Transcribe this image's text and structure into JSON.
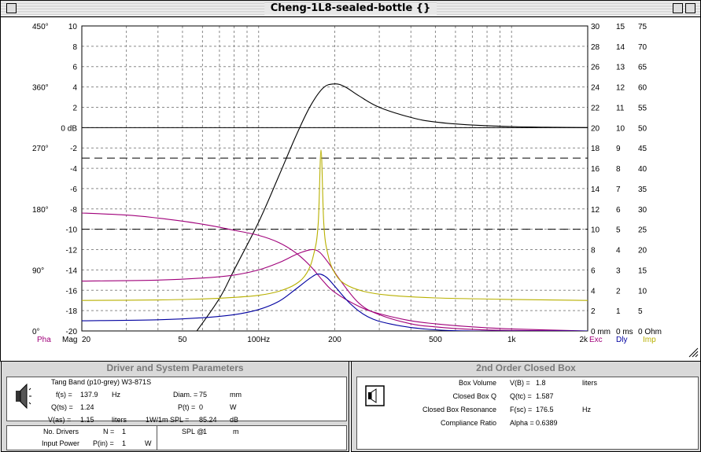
{
  "window": {
    "title": "Cheng-1L8-sealed-bottle {}"
  },
  "chart_data": {
    "type": "line",
    "x_scale": "log",
    "x_range_hz": [
      20,
      2000
    ],
    "x_ticks": [
      {
        "hz": 20,
        "label": "20"
      },
      {
        "hz": 50,
        "label": "50"
      },
      {
        "hz": 100,
        "label": "100Hz"
      },
      {
        "hz": 200,
        "label": "200"
      },
      {
        "hz": 500,
        "label": "500"
      },
      {
        "hz": 1000,
        "label": "1k"
      },
      {
        "hz": 2000,
        "label": "2k"
      }
    ],
    "grid": true,
    "left_phase_ticks": [
      {
        "v": 450,
        "label": "450°"
      },
      {
        "v": 360,
        "label": "360°"
      },
      {
        "v": 270,
        "label": "270°"
      },
      {
        "v": 180,
        "label": "180°"
      },
      {
        "v": 90,
        "label": "90°"
      },
      {
        "v": 0,
        "label": "0°"
      }
    ],
    "mag_range_db": [
      -20,
      10
    ],
    "mag_ticks": [
      "10",
      "8",
      "6",
      "4",
      "2",
      "0 dB",
      "-2",
      "-4",
      "-6",
      "-8",
      "-10",
      "-12",
      "-14",
      "-16",
      "-18",
      "-20"
    ],
    "exc_ticks": [
      "30",
      "28",
      "26",
      "24",
      "22",
      "20",
      "18",
      "16",
      "14",
      "12",
      "10",
      "8",
      "6",
      "4",
      "2",
      "0 mm"
    ],
    "dly_ticks": [
      "15",
      "14",
      "13",
      "12",
      "11",
      "10",
      "9",
      "8",
      "7",
      "6",
      "5",
      "4",
      "3",
      "2",
      "1",
      "0 ms"
    ],
    "imp_ticks": [
      "75",
      "70",
      "65",
      "60",
      "55",
      "50",
      "45",
      "40",
      "35",
      "30",
      "25",
      "20",
      "15",
      "10",
      "5",
      "0 Ohm"
    ],
    "axis_labels": {
      "pha": "Pha",
      "mag": "Mag",
      "exc": "Exc",
      "dly": "Dly",
      "imp": "Imp"
    },
    "dashed_reference_db": [
      -3,
      -10
    ],
    "series": [
      {
        "key": "magnitude",
        "color": "#000000",
        "points": [
          [
            57,
            -20
          ],
          [
            70,
            -16.8
          ],
          [
            80,
            -14
          ],
          [
            100,
            -9.3
          ],
          [
            120,
            -4.8
          ],
          [
            140,
            -0.9
          ],
          [
            160,
            2.1
          ],
          [
            180,
            3.9
          ],
          [
            200,
            4.3
          ],
          [
            220,
            4.0
          ],
          [
            250,
            3.1
          ],
          [
            300,
            2.0
          ],
          [
            400,
            1.0
          ],
          [
            500,
            0.55
          ],
          [
            700,
            0.25
          ],
          [
            1000,
            0.1
          ],
          [
            1500,
            0.03
          ],
          [
            2000,
            0
          ]
        ]
      },
      {
        "key": "phase",
        "color": "#a0007a",
        "points": [
          [
            20,
            -8.4
          ],
          [
            30,
            -8.6
          ],
          [
            40,
            -8.9
          ],
          [
            50,
            -9.2
          ],
          [
            60,
            -9.5
          ],
          [
            70,
            -9.8
          ],
          [
            80,
            -10.1
          ],
          [
            100,
            -10.6
          ],
          [
            120,
            -11.3
          ],
          [
            140,
            -12.3
          ],
          [
            160,
            -13.6
          ],
          [
            180,
            -15.1
          ],
          [
            200,
            -16.2
          ],
          [
            250,
            -17.6
          ],
          [
            300,
            -18.3
          ],
          [
            400,
            -19
          ],
          [
            500,
            -19.3
          ],
          [
            700,
            -19.6
          ],
          [
            1000,
            -19.8
          ],
          [
            2000,
            -20
          ]
        ]
      },
      {
        "key": "excursion",
        "color": "#a0007a",
        "points": [
          [
            20,
            -15.1
          ],
          [
            40,
            -15.0
          ],
          [
            60,
            -14.8
          ],
          [
            80,
            -14.5
          ],
          [
            100,
            -14.0
          ],
          [
            120,
            -13.3
          ],
          [
            140,
            -12.5
          ],
          [
            155,
            -12.1
          ],
          [
            165,
            -12.0
          ],
          [
            175,
            -12.3
          ],
          [
            190,
            -13.4
          ],
          [
            210,
            -15.0
          ],
          [
            250,
            -17.3
          ],
          [
            300,
            -18.4
          ],
          [
            400,
            -19.3
          ],
          [
            500,
            -19.6
          ],
          [
            700,
            -19.85
          ],
          [
            1000,
            -19.95
          ],
          [
            2000,
            -20
          ]
        ]
      },
      {
        "key": "delay",
        "color": "#0000a0",
        "points": [
          [
            20,
            -19.0
          ],
          [
            40,
            -18.9
          ],
          [
            60,
            -18.7
          ],
          [
            80,
            -18.4
          ],
          [
            100,
            -17.9
          ],
          [
            120,
            -17.1
          ],
          [
            140,
            -15.9
          ],
          [
            160,
            -14.8
          ],
          [
            172,
            -14.4
          ],
          [
            185,
            -14.7
          ],
          [
            200,
            -15.6
          ],
          [
            230,
            -17.3
          ],
          [
            270,
            -18.6
          ],
          [
            330,
            -19.3
          ],
          [
            450,
            -19.8
          ],
          [
            700,
            -20
          ],
          [
            2000,
            -20
          ]
        ]
      },
      {
        "key": "impedance",
        "color": "#b8b000",
        "points": [
          [
            20,
            -17.0
          ],
          [
            40,
            -16.95
          ],
          [
            60,
            -16.85
          ],
          [
            80,
            -16.7
          ],
          [
            100,
            -16.5
          ],
          [
            120,
            -16.1
          ],
          [
            140,
            -15.4
          ],
          [
            155,
            -14.3
          ],
          [
            165,
            -12.5
          ],
          [
            172,
            -9.5
          ],
          [
            176.5,
            -2.2
          ],
          [
            181,
            -9.5
          ],
          [
            188,
            -12.5
          ],
          [
            200,
            -14.3
          ],
          [
            220,
            -15.4
          ],
          [
            260,
            -16.1
          ],
          [
            330,
            -16.5
          ],
          [
            500,
            -16.75
          ],
          [
            1000,
            -16.9
          ],
          [
            2000,
            -17
          ]
        ]
      }
    ]
  },
  "driver_panel": {
    "title": "Driver and System Parameters",
    "driver_name": "Tang Band (p10-grey)  W3-871S",
    "fs": {
      "label": "f(s) =",
      "value": "137.9",
      "unit": "Hz"
    },
    "qts": {
      "label": "Q(ts) =",
      "value": "1.24"
    },
    "vas": {
      "label": "V(as) =",
      "value": "1.15",
      "unit": "liters"
    },
    "diam": {
      "label": "Diam. =",
      "value": "75",
      "unit": "mm"
    },
    "pt": {
      "label": "P(t) =",
      "value": "0",
      "unit": "W"
    },
    "spl": {
      "label": "1W/1m SPL =",
      "value": "85.24",
      "unit": "dB"
    },
    "no_drivers": {
      "label": "No. Drivers",
      "sym": "N =",
      "value": "1"
    },
    "input_power": {
      "label": "Input Power",
      "sym": "P(in) =",
      "value": "1",
      "unit": "W"
    },
    "spl_at": {
      "label": "SPL @",
      "value": "1",
      "unit": "m"
    }
  },
  "box_panel": {
    "title": "2nd Order Closed Box",
    "rows": [
      {
        "label": "Box Volume",
        "sym": "V(B) =",
        "value": "1.8",
        "unit": "liters"
      },
      {
        "label": "Closed Box Q",
        "sym": "Q(tc) =",
        "value": "1.587",
        "unit": ""
      },
      {
        "label": "Closed Box Resonance",
        "sym": "F(sc) =",
        "value": "176.5",
        "unit": "Hz"
      },
      {
        "label": "Compliance Ratio",
        "sym": "Alpha =",
        "value": "0.6389",
        "unit": ""
      }
    ]
  }
}
